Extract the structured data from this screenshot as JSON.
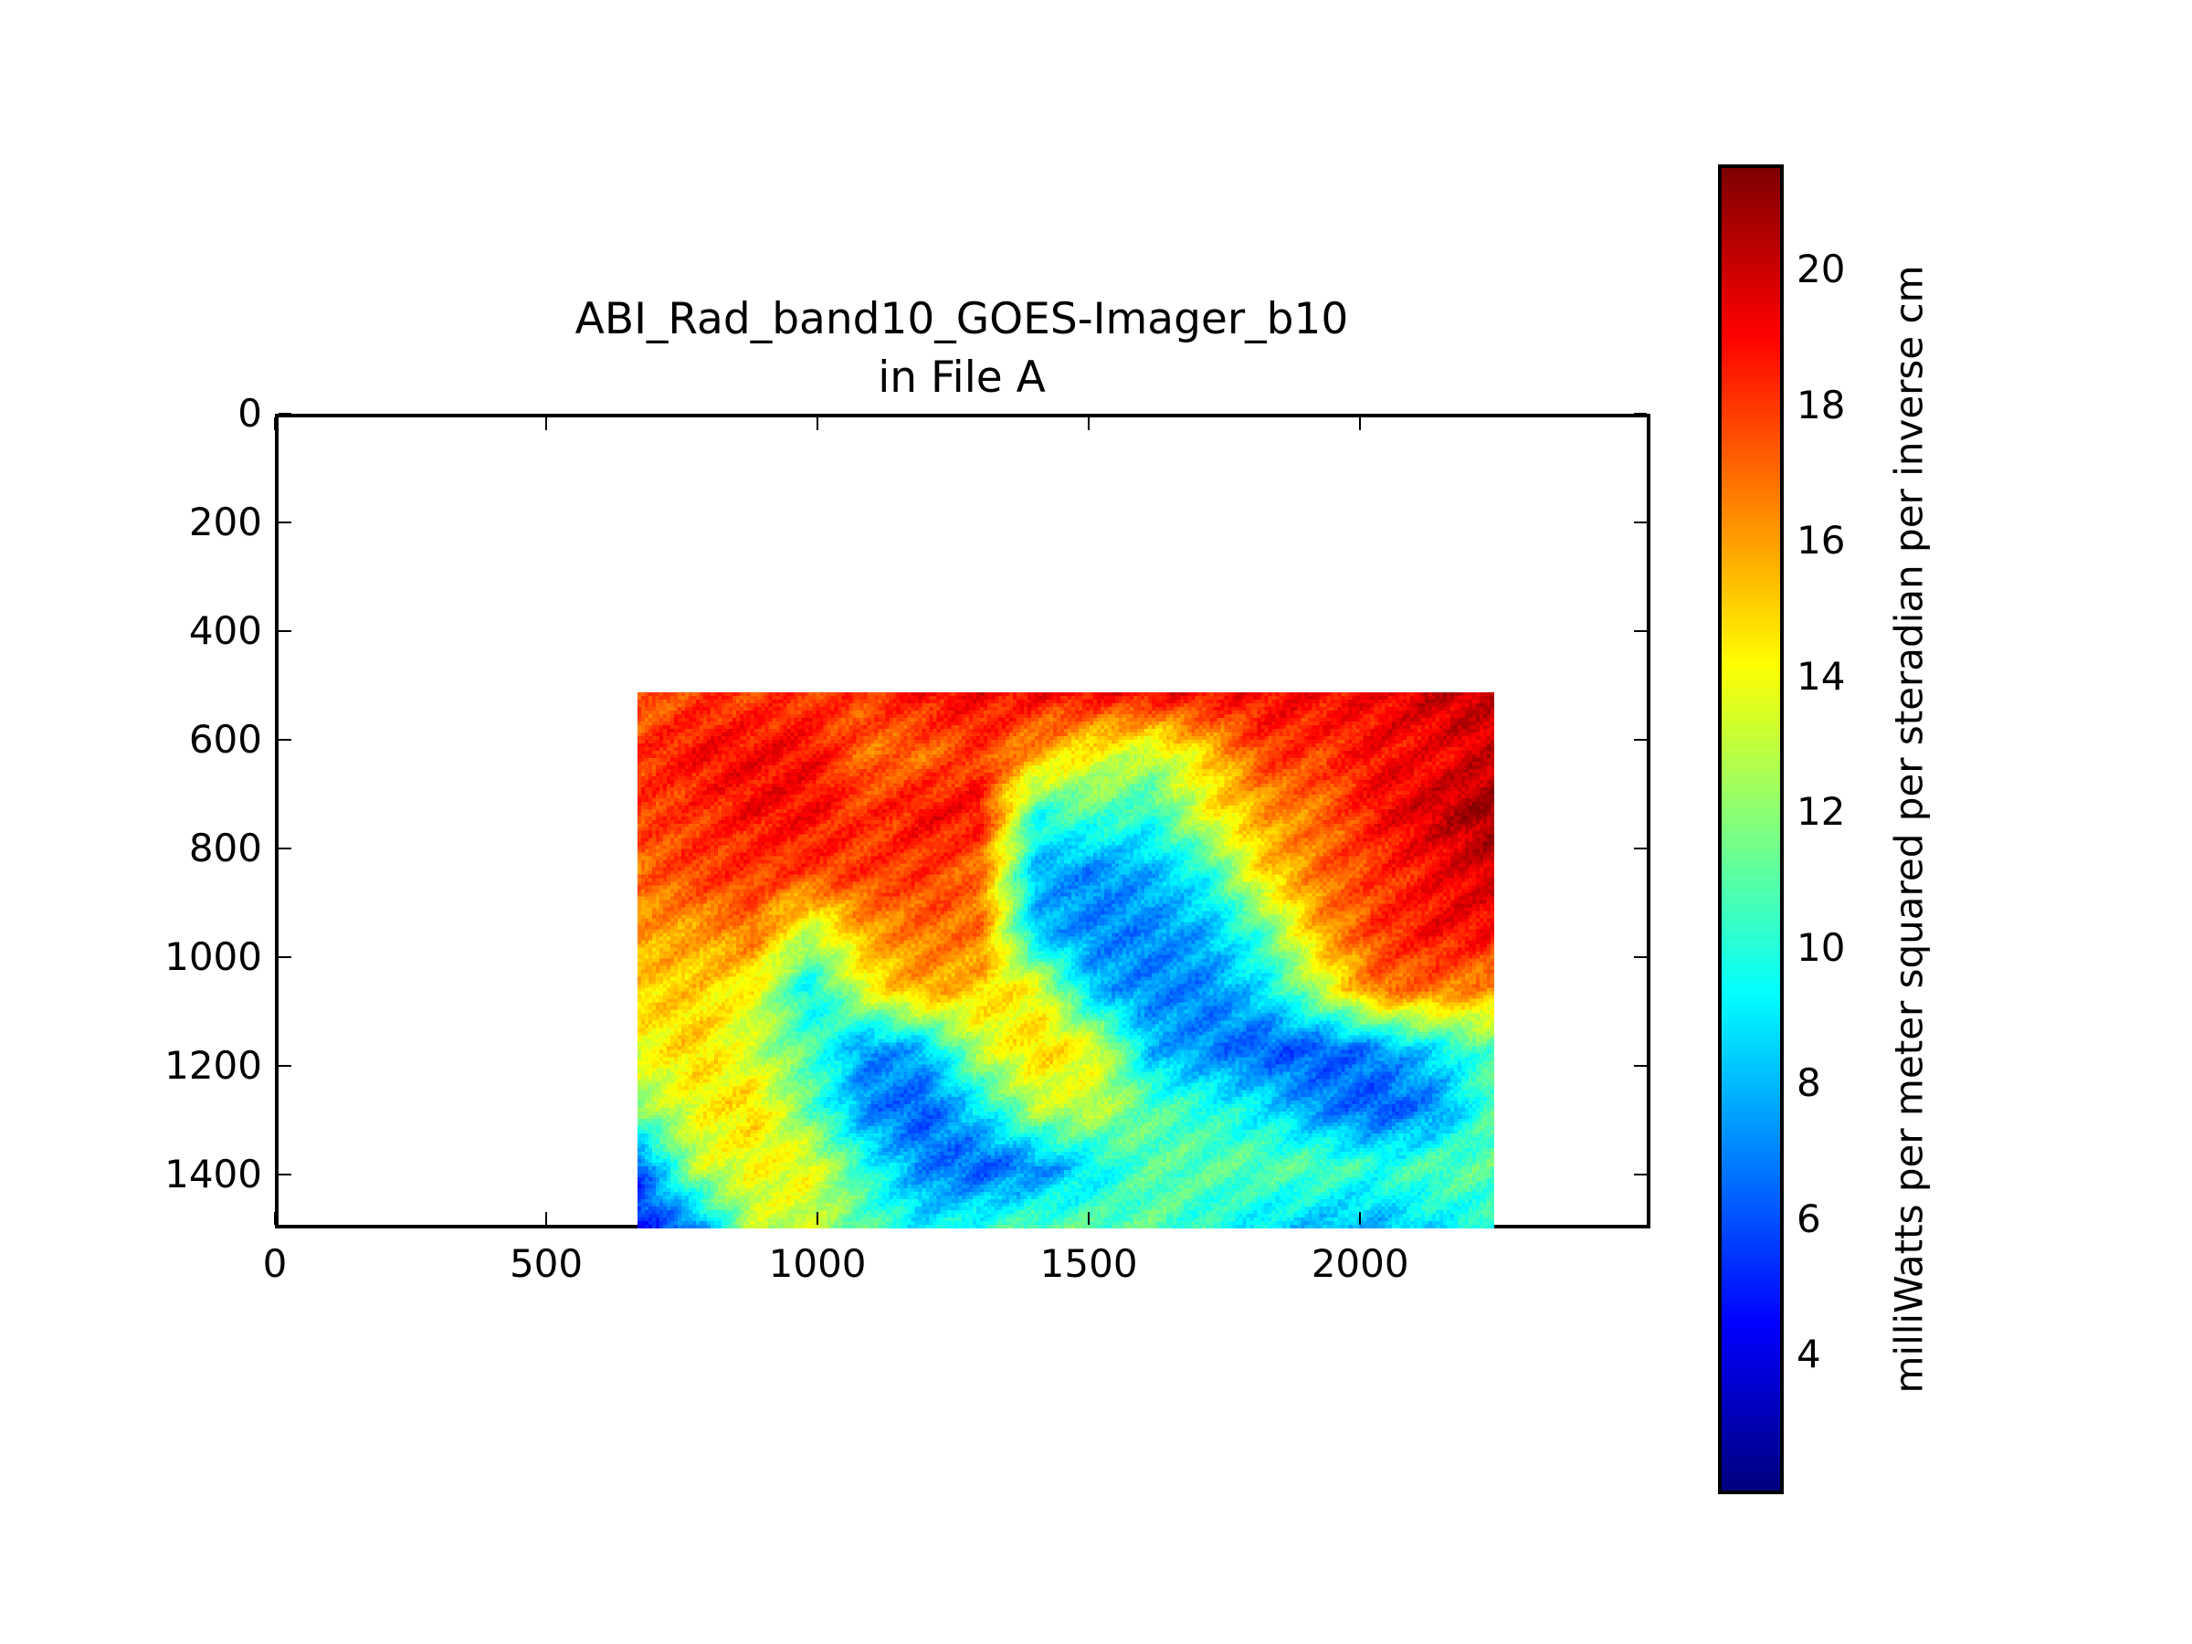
{
  "chart_data": {
    "type": "heatmap",
    "title": "ABI_Rad_band10_GOES-Imager_b10",
    "subtitle": "in File A",
    "xlabel": "",
    "ylabel": "",
    "xlim": [
      0,
      2535
    ],
    "ylim": [
      1500,
      0
    ],
    "x_ticks": [
      "0",
      "500",
      "1000",
      "1500",
      "2000"
    ],
    "x_tick_values": [
      0,
      500,
      1000,
      1500,
      2000
    ],
    "y_ticks": [
      "0",
      "200",
      "400",
      "600",
      "800",
      "1000",
      "1200",
      "1400"
    ],
    "y_tick_values": [
      0,
      200,
      400,
      600,
      800,
      1000,
      1200,
      1400
    ],
    "data_extent": {
      "x": [
        668,
        2247
      ],
      "y": [
        513,
        1500
      ]
    },
    "grid_note": "coarse approximation of radiance field, rows top-to-bottom, columns left-to-right",
    "values": [
      [
        17,
        18,
        18,
        18,
        18,
        19,
        19,
        19,
        19,
        19,
        19,
        19,
        19,
        19,
        20,
        20
      ],
      [
        18,
        19,
        19,
        19,
        17,
        17,
        18,
        16,
        14,
        13,
        15,
        18,
        18,
        19,
        19,
        20
      ],
      [
        18,
        18,
        19,
        19,
        18,
        19,
        19,
        10,
        11,
        10,
        14,
        16,
        17,
        19,
        20,
        21
      ],
      [
        17,
        18,
        18,
        18,
        18,
        18,
        17,
        8,
        7,
        8,
        10,
        15,
        17,
        18,
        19,
        20
      ],
      [
        16,
        16,
        17,
        13,
        16,
        17,
        17,
        8,
        7,
        7,
        8,
        11,
        16,
        18,
        19,
        19
      ],
      [
        15,
        15,
        14,
        9,
        14,
        16,
        15,
        14,
        8,
        7,
        7,
        9,
        13,
        17,
        17,
        16
      ],
      [
        14,
        15,
        13,
        11,
        7,
        8,
        13,
        15,
        14,
        8,
        7,
        6,
        6,
        7,
        9,
        11
      ],
      [
        12,
        14,
        15,
        11,
        7,
        6,
        9,
        13,
        13,
        11,
        10,
        9,
        7,
        6,
        7,
        11
      ],
      [
        6,
        13,
        14,
        14,
        10,
        7,
        6,
        7,
        9,
        11,
        11,
        11,
        11,
        10,
        11,
        11
      ],
      [
        5,
        7,
        13,
        13,
        11,
        9,
        10,
        11,
        11,
        11,
        10,
        9,
        8,
        8,
        9,
        10
      ]
    ],
    "colormap": "jet",
    "colorbar": {
      "label": "milliWatts per meter squared per steradian per inverse cm",
      "range": [
        2.0,
        21.5
      ],
      "ticks": [
        "4",
        "6",
        "8",
        "10",
        "12",
        "14",
        "16",
        "18",
        "20"
      ],
      "tick_values": [
        4,
        6,
        8,
        10,
        12,
        14,
        16,
        18,
        20
      ]
    },
    "grid": false
  }
}
